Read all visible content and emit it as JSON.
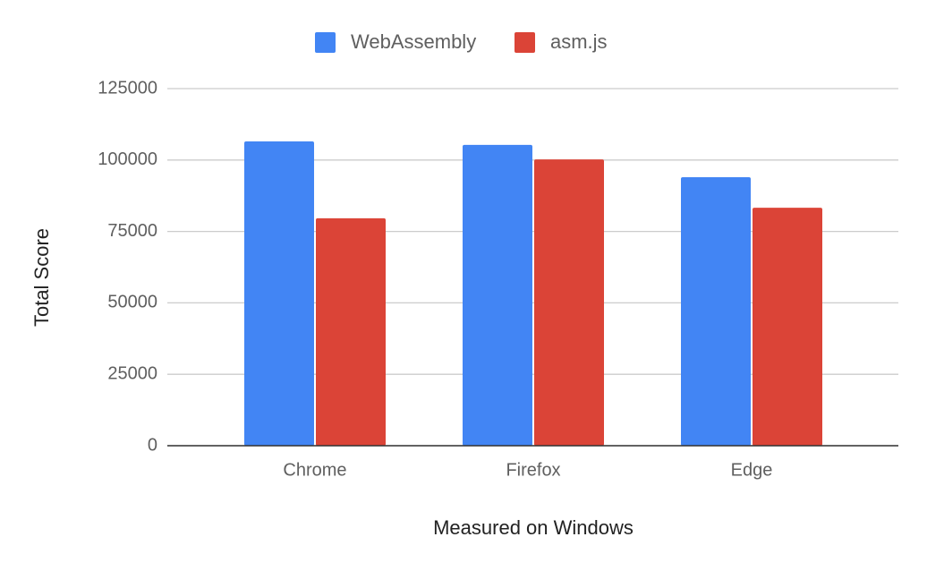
{
  "chart_data": {
    "type": "bar",
    "x_label": "Measured on Windows",
    "y_label": "Total Score",
    "categories": [
      "Chrome",
      "Firefox",
      "Edge"
    ],
    "series": [
      {
        "name": "WebAssembly",
        "color": "#4285f4",
        "values": [
          106500,
          105300,
          94000
        ]
      },
      {
        "name": "asm.js",
        "color": "#db4437",
        "values": [
          79600,
          100200,
          83300
        ]
      }
    ],
    "ylim": [
      0,
      125000
    ],
    "yticks": [
      0,
      25000,
      50000,
      75000,
      100000,
      125000
    ],
    "grid": true,
    "legend": "top"
  }
}
